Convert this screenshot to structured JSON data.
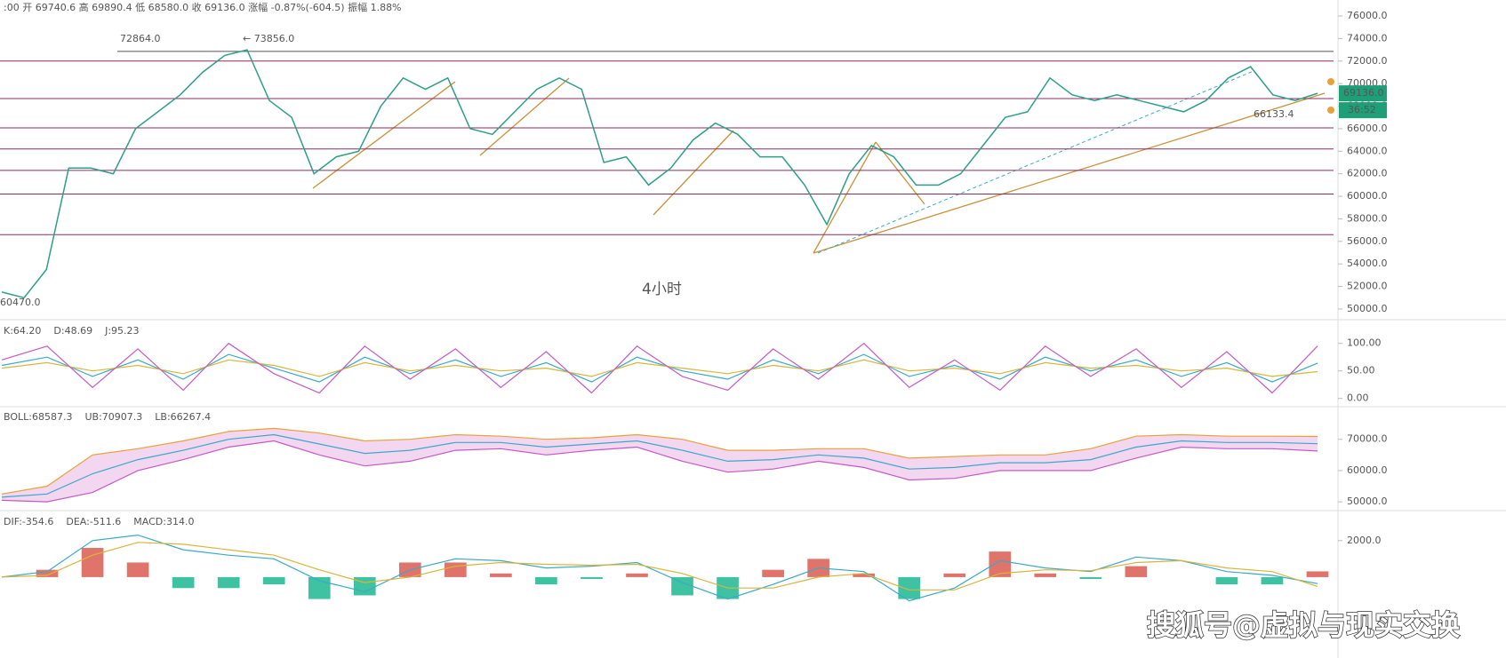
{
  "chart_data": [
    {
      "type": "line",
      "header": ":00  开 69740.6  高 69890.4  低 68580.0  收 69136.0  涨幅 -0.87%(-604.5)  振幅 1.88%",
      "color": "#2e9e8a",
      "values": [
        51500,
        51000,
        53500,
        62500,
        62500,
        62000,
        66000,
        67500,
        69000,
        71000,
        72500,
        73000,
        68500,
        67000,
        62000,
        63500,
        64000,
        68000,
        70500,
        69500,
        70500,
        66000,
        65500,
        67500,
        69500,
        70500,
        69500,
        63000,
        63500,
        61000,
        62500,
        65000,
        66500,
        65500,
        63500,
        63500,
        61000,
        57500,
        62000,
        64500,
        63500,
        61000,
        61000,
        62000,
        64500,
        67000,
        67500,
        70500,
        69000,
        68500,
        69000,
        68500,
        68000,
        67500,
        68500,
        70500,
        71500,
        69000,
        68500,
        69136
      ],
      "ylim": [
        49050,
        77420
      ],
      "yticks": [
        {
          "value": 76000,
          "label": "76000.0"
        },
        {
          "value": 74000,
          "label": "74000.0"
        },
        {
          "value": 72000,
          "label": "72000.0"
        },
        {
          "value": 70000,
          "label": "70000.0"
        },
        {
          "value": 68000,
          "label": "68000.0"
        },
        {
          "value": 66000,
          "label": "66000.0"
        },
        {
          "value": 64000,
          "label": "64000.0"
        },
        {
          "value": 62000,
          "label": "62000.0"
        },
        {
          "value": 60000,
          "label": "60000.0"
        },
        {
          "value": 58000,
          "label": "58000.0"
        },
        {
          "value": 56000,
          "label": "56000.0"
        },
        {
          "value": 54000,
          "label": "54000.0"
        },
        {
          "value": 52000,
          "label": "52000.0"
        },
        {
          "value": 50000,
          "label": "50000.0"
        }
      ],
      "levels": [
        72864,
        72000,
        68672,
        66070,
        64200,
        62300,
        60200,
        56600
      ],
      "level_color": "#8e2d62",
      "annotations": [
        "72864.0",
        "← 73856.0",
        "60470.0",
        "66133.4",
        "4小时"
      ],
      "last_price": {
        "value": 69136,
        "label": "69136.0"
      },
      "countdown": "36:52"
    },
    {
      "type": "line",
      "header": [
        "K:64.20",
        "D:48.69",
        "J:95.23"
      ],
      "series": [
        {
          "color": "#3aa9c9",
          "values": [
            60,
            75,
            40,
            70,
            35,
            80,
            55,
            30,
            75,
            45,
            70,
            40,
            65,
            30,
            75,
            50,
            35,
            70,
            45,
            80,
            40,
            60,
            35,
            75,
            50,
            70,
            40,
            65,
            30,
            64.2
          ]
        },
        {
          "color": "#d9b53a",
          "values": [
            55,
            65,
            50,
            60,
            45,
            70,
            60,
            40,
            65,
            50,
            60,
            50,
            55,
            40,
            65,
            55,
            45,
            60,
            50,
            70,
            50,
            55,
            45,
            65,
            55,
            60,
            50,
            55,
            40,
            48.69
          ]
        },
        {
          "color": "#c45ac4",
          "values": [
            70,
            95,
            20,
            90,
            15,
            100,
            45,
            10,
            95,
            35,
            90,
            20,
            85,
            10,
            95,
            40,
            15,
            90,
            35,
            100,
            20,
            70,
            15,
            95,
            40,
            90,
            20,
            85,
            10,
            95.23
          ]
        }
      ],
      "ylim": [
        -15,
        135
      ],
      "yticks": [
        {
          "value": 100,
          "label": "100.00"
        },
        {
          "value": 50,
          "label": "50.00"
        },
        {
          "value": 0,
          "label": "0.00"
        }
      ]
    },
    {
      "type": "band",
      "header": [
        "BOLL:68587.3",
        "UB:70907.3",
        "LB:66267.4"
      ],
      "fill": "#f3d6f0",
      "series": [
        {
          "color": "#3aa9c9",
          "values": [
            51500,
            52500,
            59000,
            63500,
            66500,
            70000,
            71500,
            68500,
            65500,
            66500,
            69000,
            69000,
            67500,
            68500,
            69500,
            66500,
            63000,
            63500,
            65000,
            64000,
            60500,
            61000,
            62500,
            62500,
            63500,
            67500,
            69500,
            69000,
            69000,
            68587.3
          ]
        },
        {
          "color": "#e8a23a",
          "values": [
            52500,
            55000,
            65000,
            67000,
            69500,
            72500,
            73500,
            72000,
            69500,
            70000,
            71500,
            71000,
            70000,
            70500,
            71500,
            70000,
            66500,
            66500,
            67000,
            67000,
            64000,
            64500,
            65000,
            65000,
            67000,
            71000,
            71500,
            71000,
            71000,
            70907.3
          ]
        },
        {
          "color": "#c45ac4",
          "values": [
            50500,
            50000,
            53000,
            60000,
            63500,
            67500,
            69500,
            65000,
            61500,
            63000,
            66500,
            67000,
            65000,
            66500,
            67500,
            63000,
            59500,
            60500,
            63000,
            61000,
            57000,
            57500,
            60000,
            60000,
            60000,
            64000,
            67500,
            67000,
            67000,
            66267.4
          ]
        }
      ],
      "ylim": [
        47200,
        79300
      ],
      "yticks": [
        {
          "value": 70000,
          "label": "70000.0"
        },
        {
          "value": 60000,
          "label": "60000.0"
        },
        {
          "value": 50000,
          "label": "50000.0"
        }
      ]
    },
    {
      "type": "macd",
      "header": [
        "DIF:-354.6",
        "DEA:-511.6",
        "MACD:314.0"
      ],
      "up_color": "#e0746a",
      "down_color": "#3fc2a2",
      "histogram": [
        0,
        400,
        1600,
        800,
        -600,
        -600,
        -400,
        -1200,
        -1000,
        800,
        800,
        200,
        -400,
        -100,
        200,
        -1000,
        -1200,
        400,
        1000,
        200,
        -1200,
        200,
        1400,
        200,
        -100,
        600,
        0,
        -400,
        -400,
        314
      ],
      "series": [
        {
          "color": "#3aa9c9",
          "values": [
            0,
            300,
            2000,
            2300,
            1500,
            1200,
            1000,
            -200,
            -800,
            400,
            1000,
            900,
            500,
            600,
            800,
            -300,
            -1200,
            -400,
            500,
            300,
            -1300,
            -600,
            900,
            500,
            300,
            1100,
            900,
            300,
            100,
            -354.6
          ]
        },
        {
          "color": "#d9b53a",
          "values": [
            0,
            100,
            1200,
            1900,
            1800,
            1500,
            1200,
            400,
            -300,
            0,
            600,
            800,
            700,
            650,
            700,
            200,
            -600,
            -600,
            0,
            200,
            -700,
            -700,
            200,
            400,
            350,
            800,
            900,
            500,
            300,
            -511.6
          ]
        }
      ],
      "ylim": [
        -1950,
        3400
      ],
      "yticks": [
        {
          "value": 2000,
          "label": "2000.0"
        }
      ]
    }
  ],
  "watermark": "搜狐号@虚拟与现实交换"
}
